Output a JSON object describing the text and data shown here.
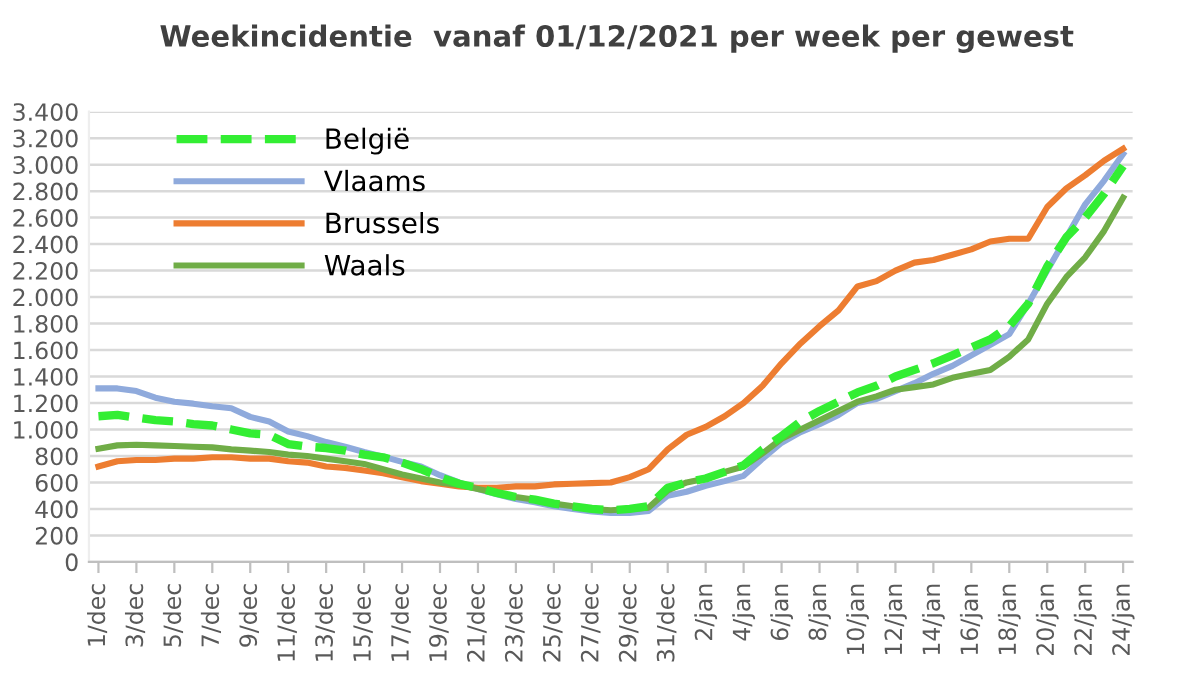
{
  "chart_data": {
    "type": "line",
    "title": "Weekincidentie  vanaf 01/12/2021 per week per gewest",
    "categories": [
      "1/dec",
      null,
      "3/dec",
      null,
      "5/dec",
      null,
      "7/dec",
      null,
      "9/dec",
      null,
      "11/dec",
      null,
      "13/dec",
      null,
      "15/dec",
      null,
      "17/dec",
      null,
      "19/dec",
      null,
      "21/dec",
      null,
      "23/dec",
      null,
      "25/dec",
      null,
      "27/dec",
      null,
      "29/dec",
      null,
      "31/dec",
      null,
      "2/jan",
      null,
      "4/jan",
      null,
      "6/jan",
      null,
      "8/jan",
      null,
      "10/jan",
      null,
      "12/jan",
      null,
      "14/jan",
      null,
      "16/jan",
      null,
      "18/jan",
      null,
      "20/jan",
      null,
      "22/jan",
      null,
      "24/jan"
    ],
    "series": [
      {
        "name": "België",
        "color": "#33ee33",
        "line_style": "dashed",
        "values": [
          1100,
          1110,
          1090,
          1070,
          1060,
          1040,
          1030,
          1000,
          970,
          960,
          890,
          870,
          860,
          840,
          810,
          790,
          750,
          700,
          640,
          590,
          560,
          520,
          490,
          470,
          440,
          420,
          400,
          390,
          400,
          420,
          560,
          600,
          630,
          680,
          730,
          850,
          950,
          1060,
          1140,
          1210,
          1280,
          1330,
          1400,
          1450,
          1500,
          1560,
          1620,
          1680,
          1780,
          1950,
          2230,
          2450,
          2600,
          2780,
          2990
        ]
      },
      {
        "name": "Vlaams",
        "color": "#8faadc",
        "line_style": "solid",
        "values": [
          1310,
          1310,
          1290,
          1240,
          1210,
          1195,
          1175,
          1160,
          1095,
          1060,
          985,
          950,
          905,
          870,
          830,
          795,
          755,
          720,
          655,
          600,
          550,
          510,
          475,
          450,
          420,
          400,
          380,
          370,
          370,
          385,
          500,
          530,
          575,
          610,
          650,
          780,
          900,
          980,
          1040,
          1110,
          1200,
          1230,
          1290,
          1350,
          1420,
          1480,
          1560,
          1640,
          1720,
          1950,
          2200,
          2450,
          2700,
          2880,
          3080
        ]
      },
      {
        "name": "Brussels",
        "color": "#ed7d31",
        "line_style": "solid",
        "values": [
          720,
          760,
          770,
          770,
          780,
          780,
          790,
          790,
          780,
          780,
          760,
          750,
          720,
          710,
          690,
          670,
          640,
          610,
          590,
          570,
          560,
          560,
          570,
          570,
          585,
          590,
          595,
          600,
          640,
          700,
          850,
          960,
          1020,
          1100,
          1200,
          1330,
          1500,
          1650,
          1780,
          1900,
          2080,
          2120,
          2200,
          2260,
          2280,
          2320,
          2360,
          2420,
          2440,
          2440,
          2680,
          2820,
          2920,
          3030,
          3120
        ]
      },
      {
        "name": "Waals",
        "color": "#70ad47",
        "line_style": "solid",
        "values": [
          855,
          880,
          885,
          880,
          875,
          870,
          865,
          850,
          840,
          830,
          810,
          800,
          780,
          760,
          740,
          700,
          660,
          630,
          600,
          580,
          550,
          520,
          490,
          470,
          440,
          420,
          400,
          390,
          400,
          410,
          540,
          600,
          630,
          680,
          720,
          820,
          930,
          1000,
          1070,
          1140,
          1210,
          1250,
          1300,
          1320,
          1340,
          1390,
          1420,
          1450,
          1550,
          1680,
          1950,
          2150,
          2300,
          2500,
          2750
        ]
      }
    ],
    "ylim": [
      0,
      3400
    ],
    "yticks": [
      0,
      {
        "value": 200,
        "label": "200"
      },
      {
        "value": 400,
        "label": "400"
      },
      {
        "value": 600,
        "label": "600"
      },
      {
        "value": 800,
        "label": "800"
      },
      {
        "value": 1000,
        "label": "1.000"
      },
      {
        "value": 1200,
        "label": "1.200"
      },
      {
        "value": 1400,
        "label": "1.400"
      },
      {
        "value": 1600,
        "label": "1.600"
      },
      {
        "value": 1800,
        "label": "1.800"
      },
      {
        "value": 2000,
        "label": "2.000"
      },
      {
        "value": 2200,
        "label": "2.200"
      },
      {
        "value": 2400,
        "label": "2.400"
      },
      {
        "value": 2600,
        "label": "2.600"
      },
      {
        "value": 2800,
        "label": "2.800"
      },
      {
        "value": 3000,
        "label": "3.000"
      },
      {
        "value": 3200,
        "label": "3.200"
      },
      {
        "value": 3400,
        "label": "3.400"
      }
    ],
    "grid": "y",
    "legend": "top left",
    "marker": "none"
  }
}
